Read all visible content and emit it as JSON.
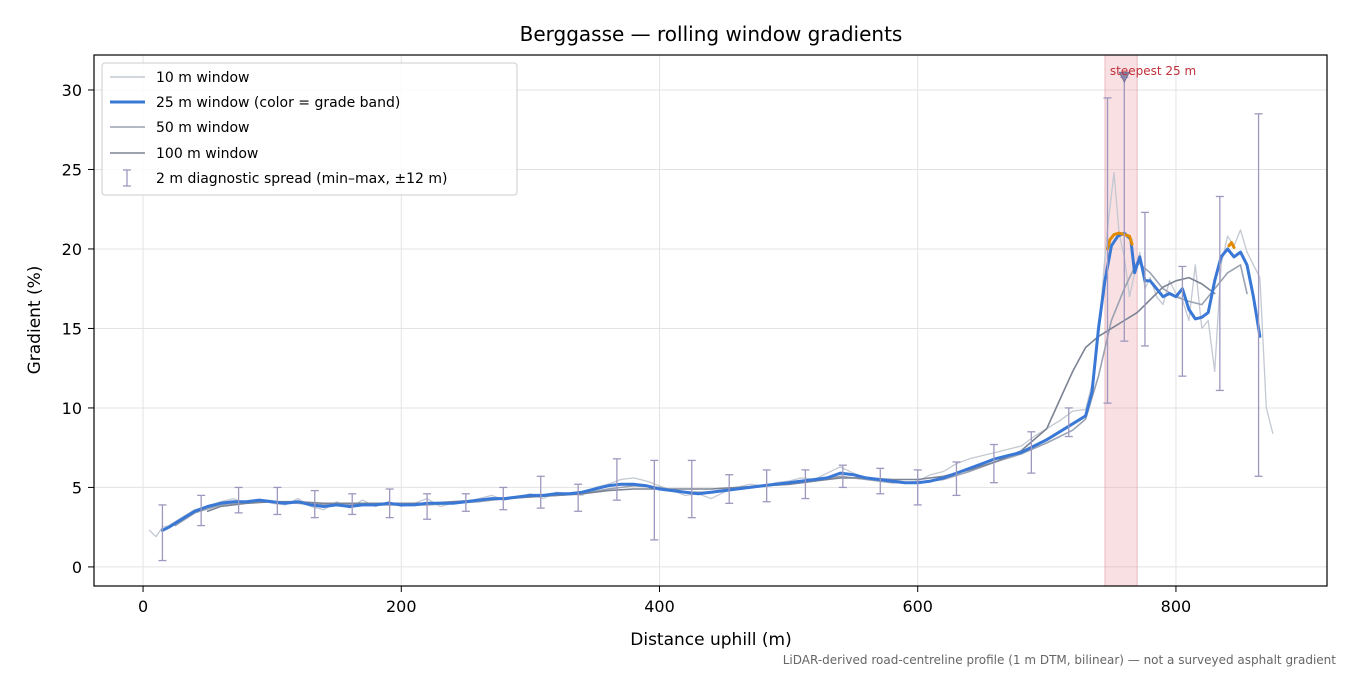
{
  "chart_data": {
    "type": "line",
    "title": "Berggasse — rolling window gradients",
    "xlabel": "Distance uphill (m)",
    "ylabel": "Gradient (%)",
    "xlim": [
      -38,
      917
    ],
    "ylim": [
      -1.2,
      32.2
    ],
    "xticks": [
      0,
      200,
      400,
      600,
      800
    ],
    "yticks": [
      0,
      5,
      10,
      15,
      20,
      25,
      30
    ],
    "grid": true,
    "legend_position": "upper-left",
    "footnote": "LiDAR-derived road-centreline profile (1 m DTM, bilinear) — not a surveyed asphalt gradient",
    "highlight": {
      "x_start": 745,
      "x_end": 770,
      "label": "steepest 25 m",
      "marker_x": 760,
      "marker_y": 30.8
    },
    "grade_band_colors": {
      "normal": "#3a78d6",
      "steep": "#e08a00"
    },
    "series": [
      {
        "name": "10 m window",
        "color": "#c3c8d2",
        "width": 1.3,
        "x": [
          5,
          10,
          15,
          20,
          30,
          40,
          50,
          60,
          70,
          80,
          90,
          100,
          110,
          120,
          130,
          140,
          150,
          160,
          170,
          180,
          190,
          200,
          210,
          220,
          230,
          240,
          250,
          260,
          270,
          280,
          290,
          300,
          310,
          320,
          330,
          340,
          350,
          360,
          370,
          380,
          390,
          400,
          410,
          420,
          430,
          440,
          450,
          460,
          470,
          480,
          490,
          500,
          510,
          520,
          530,
          540,
          550,
          560,
          570,
          580,
          590,
          600,
          610,
          620,
          630,
          640,
          650,
          660,
          670,
          680,
          690,
          700,
          710,
          720,
          730,
          735,
          740,
          745,
          748,
          752,
          756,
          760,
          764,
          768,
          772,
          776,
          780,
          785,
          790,
          795,
          800,
          805,
          810,
          815,
          820,
          825,
          830,
          835,
          840,
          845,
          850,
          855,
          860,
          865,
          870,
          875
        ],
        "y": [
          2.3,
          1.9,
          2.5,
          2.6,
          3.1,
          3.6,
          3.8,
          4.1,
          4.3,
          4.0,
          4.2,
          4.0,
          3.9,
          4.3,
          3.8,
          3.6,
          4.1,
          3.7,
          4.2,
          3.8,
          4.1,
          3.8,
          4.0,
          4.3,
          3.8,
          4.0,
          4.1,
          4.3,
          4.5,
          4.2,
          4.4,
          4.6,
          4.3,
          4.7,
          4.6,
          4.5,
          5.0,
          5.2,
          5.5,
          5.6,
          5.4,
          5.1,
          4.8,
          4.5,
          4.6,
          4.3,
          4.7,
          5.0,
          5.2,
          5.1,
          5.3,
          5.4,
          5.6,
          5.5,
          5.9,
          6.3,
          5.9,
          5.6,
          5.4,
          5.5,
          5.3,
          5.4,
          5.8,
          6.0,
          6.5,
          6.8,
          7.0,
          7.2,
          7.4,
          7.6,
          8.2,
          8.7,
          9.2,
          9.8,
          9.9,
          11.5,
          14.5,
          19.5,
          22.0,
          24.8,
          21.0,
          19.5,
          17.0,
          18.5,
          19.8,
          17.5,
          18.2,
          17.0,
          16.5,
          18.0,
          17.2,
          16.8,
          15.5,
          19.0,
          15.0,
          15.5,
          12.3,
          19.0,
          20.8,
          20.2,
          21.2,
          19.8,
          19.0,
          18.2,
          10.0,
          8.4
        ]
      },
      {
        "name": "25 m window (color = grade band)",
        "color": "#3a78d6",
        "width": 3,
        "x": [
          15,
          20,
          30,
          40,
          50,
          60,
          70,
          80,
          90,
          100,
          110,
          120,
          130,
          140,
          150,
          160,
          170,
          180,
          190,
          200,
          210,
          220,
          230,
          240,
          250,
          260,
          270,
          280,
          290,
          300,
          310,
          320,
          330,
          340,
          350,
          360,
          370,
          380,
          390,
          400,
          410,
          420,
          430,
          440,
          450,
          460,
          470,
          480,
          490,
          500,
          510,
          520,
          530,
          540,
          550,
          560,
          570,
          580,
          590,
          600,
          610,
          620,
          630,
          640,
          650,
          660,
          670,
          680,
          690,
          700,
          710,
          720,
          730,
          735,
          740,
          745,
          750,
          755,
          760,
          765,
          768,
          772,
          776,
          780,
          785,
          790,
          795,
          800,
          805,
          810,
          815,
          820,
          825,
          830,
          835,
          840,
          845,
          850,
          855,
          860,
          865
        ],
        "y": [
          2.3,
          2.5,
          3.0,
          3.5,
          3.8,
          4.0,
          4.1,
          4.1,
          4.2,
          4.1,
          4.0,
          4.1,
          3.9,
          3.8,
          3.9,
          3.8,
          3.9,
          3.9,
          4.0,
          3.9,
          3.9,
          4.0,
          4.0,
          4.0,
          4.1,
          4.2,
          4.3,
          4.3,
          4.4,
          4.5,
          4.5,
          4.6,
          4.6,
          4.7,
          4.9,
          5.1,
          5.2,
          5.2,
          5.1,
          4.9,
          4.8,
          4.7,
          4.6,
          4.7,
          4.8,
          4.9,
          5.0,
          5.1,
          5.2,
          5.3,
          5.4,
          5.5,
          5.6,
          5.9,
          5.8,
          5.6,
          5.5,
          5.4,
          5.3,
          5.3,
          5.4,
          5.6,
          5.9,
          6.2,
          6.5,
          6.8,
          7.0,
          7.2,
          7.6,
          8.0,
          8.5,
          9.0,
          9.5,
          11.0,
          15.0,
          18.0,
          20.2,
          20.8,
          21.0,
          20.6,
          18.5,
          19.5,
          18.0,
          18.0,
          17.5,
          17.0,
          17.2,
          17.0,
          17.5,
          16.2,
          15.6,
          15.7,
          16.0,
          18.0,
          19.5,
          20.0,
          19.5,
          19.8,
          19.0,
          17.0,
          14.5
        ]
      },
      {
        "name": "50 m window",
        "color": "#9aa2b1",
        "width": 1.6,
        "x": [
          25,
          40,
          60,
          80,
          100,
          120,
          140,
          160,
          180,
          200,
          220,
          240,
          260,
          280,
          300,
          320,
          340,
          360,
          380,
          400,
          420,
          440,
          460,
          480,
          500,
          520,
          540,
          560,
          580,
          600,
          620,
          640,
          660,
          680,
          700,
          720,
          730,
          740,
          750,
          760,
          770,
          780,
          790,
          800,
          810,
          820,
          830,
          840,
          850,
          855
        ],
        "y": [
          2.6,
          3.4,
          3.9,
          4.1,
          4.1,
          4.0,
          3.9,
          3.9,
          3.9,
          3.9,
          3.9,
          4.0,
          4.1,
          4.3,
          4.4,
          4.5,
          4.6,
          4.9,
          5.1,
          5.0,
          4.7,
          4.7,
          4.9,
          5.1,
          5.2,
          5.4,
          5.7,
          5.5,
          5.3,
          5.3,
          5.5,
          6.0,
          6.6,
          7.1,
          7.8,
          8.6,
          9.3,
          12.0,
          15.5,
          17.5,
          19.2,
          18.5,
          17.5,
          17.0,
          16.7,
          16.5,
          17.5,
          18.5,
          19.0,
          17.2
        ]
      },
      {
        "name": "100 m window",
        "color": "#7b8394",
        "width": 1.6,
        "x": [
          50,
          60,
          80,
          100,
          120,
          140,
          160,
          180,
          200,
          220,
          240,
          260,
          280,
          300,
          320,
          340,
          360,
          380,
          400,
          420,
          440,
          460,
          480,
          500,
          520,
          540,
          560,
          580,
          600,
          620,
          640,
          660,
          680,
          700,
          710,
          720,
          730,
          740,
          750,
          760,
          770,
          780,
          790,
          800,
          810,
          820,
          830
        ],
        "y": [
          3.5,
          3.8,
          4.0,
          4.1,
          4.1,
          4.0,
          4.0,
          4.0,
          4.0,
          4.0,
          4.1,
          4.2,
          4.3,
          4.4,
          4.5,
          4.6,
          4.8,
          4.9,
          4.9,
          4.9,
          4.9,
          5.0,
          5.1,
          5.2,
          5.4,
          5.6,
          5.6,
          5.5,
          5.5,
          5.7,
          6.1,
          6.6,
          7.3,
          8.7,
          10.5,
          12.3,
          13.8,
          14.5,
          15.0,
          15.5,
          16.0,
          16.8,
          17.6,
          18.0,
          18.2,
          17.8,
          17.2
        ]
      }
    ],
    "steep_segments": [
      {
        "x": [
          747,
          749,
          752,
          756,
          760,
          764,
          766
        ],
        "y": [
          20.0,
          20.6,
          20.9,
          21.0,
          20.9,
          20.8,
          20.3
        ]
      },
      {
        "x": [
          841,
          843,
          845
        ],
        "y": [
          20.2,
          20.4,
          20.1
        ]
      }
    ],
    "error_bars": {
      "name": "2 m diagnostic spread (min–max, ±12 m)",
      "color": "#9e98bf",
      "points": [
        {
          "x": 15,
          "center": 2.4,
          "min": 0.4,
          "max": 3.9
        },
        {
          "x": 45,
          "center": 3.6,
          "min": 2.6,
          "max": 4.5
        },
        {
          "x": 74,
          "center": 4.1,
          "min": 3.4,
          "max": 5.0
        },
        {
          "x": 104,
          "center": 4.1,
          "min": 3.3,
          "max": 5.0
        },
        {
          "x": 133,
          "center": 3.9,
          "min": 3.1,
          "max": 4.8
        },
        {
          "x": 162,
          "center": 3.9,
          "min": 3.3,
          "max": 4.6
        },
        {
          "x": 191,
          "center": 4.0,
          "min": 3.1,
          "max": 4.9
        },
        {
          "x": 220,
          "center": 3.9,
          "min": 3.0,
          "max": 4.6
        },
        {
          "x": 250,
          "center": 4.0,
          "min": 3.5,
          "max": 4.6
        },
        {
          "x": 279,
          "center": 4.3,
          "min": 3.6,
          "max": 5.0
        },
        {
          "x": 308,
          "center": 4.5,
          "min": 3.7,
          "max": 5.7
        },
        {
          "x": 337,
          "center": 4.6,
          "min": 3.5,
          "max": 5.2
        },
        {
          "x": 367,
          "center": 5.1,
          "min": 4.2,
          "max": 6.8
        },
        {
          "x": 396,
          "center": 5.0,
          "min": 1.7,
          "max": 6.7
        },
        {
          "x": 425,
          "center": 4.7,
          "min": 3.1,
          "max": 6.7
        },
        {
          "x": 454,
          "center": 4.8,
          "min": 4.0,
          "max": 5.8
        },
        {
          "x": 483,
          "center": 5.1,
          "min": 4.1,
          "max": 6.1
        },
        {
          "x": 513,
          "center": 5.3,
          "min": 4.3,
          "max": 6.1
        },
        {
          "x": 542,
          "center": 5.9,
          "min": 5.0,
          "max": 6.4
        },
        {
          "x": 571,
          "center": 5.5,
          "min": 4.6,
          "max": 6.2
        },
        {
          "x": 600,
          "center": 5.3,
          "min": 3.9,
          "max": 6.1
        },
        {
          "x": 630,
          "center": 5.8,
          "min": 4.5,
          "max": 6.6
        },
        {
          "x": 659,
          "center": 6.7,
          "min": 5.3,
          "max": 7.7
        },
        {
          "x": 688,
          "center": 7.5,
          "min": 5.9,
          "max": 8.5
        },
        {
          "x": 717,
          "center": 9.0,
          "min": 8.2,
          "max": 10.0
        },
        {
          "x": 747,
          "center": 19.0,
          "min": 10.3,
          "max": 29.5
        },
        {
          "x": 760,
          "center": 20.8,
          "min": 14.2,
          "max": 30.8
        },
        {
          "x": 776,
          "center": 18.0,
          "min": 13.9,
          "max": 22.3
        },
        {
          "x": 805,
          "center": 16.2,
          "min": 12.0,
          "max": 18.9
        },
        {
          "x": 834,
          "center": 19.0,
          "min": 11.1,
          "max": 23.3
        },
        {
          "x": 864,
          "center": 14.5,
          "min": 5.7,
          "max": 28.5
        }
      ]
    }
  }
}
